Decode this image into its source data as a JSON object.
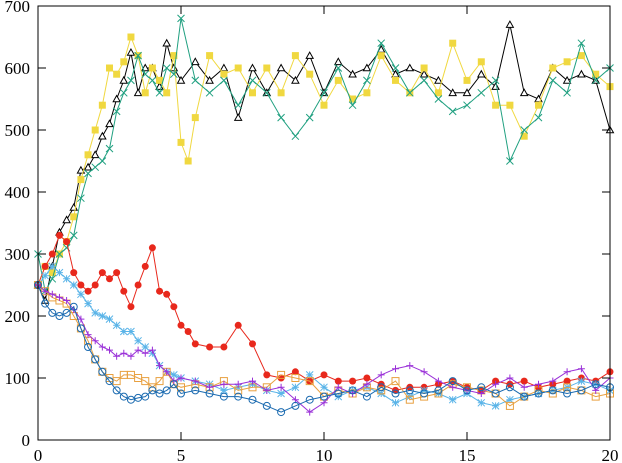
{
  "chart_data": {
    "type": "line",
    "title": "",
    "xlabel": "",
    "ylabel": "",
    "xlim": [
      0,
      20
    ],
    "ylim": [
      0,
      700
    ],
    "xticks": [
      0,
      5,
      10,
      15,
      20
    ],
    "yticks": [
      0,
      100,
      200,
      300,
      400,
      500,
      600,
      700
    ],
    "grid": false,
    "legend": "none",
    "series": [
      {
        "color": "#000000",
        "marker": "triangle-open",
        "x": [
          0,
          0.25,
          0.5,
          0.75,
          1,
          1.25,
          1.5,
          1.75,
          2,
          2.25,
          2.5,
          2.75,
          3,
          3.25,
          3.5,
          3.75,
          4,
          4.25,
          4.5,
          4.75,
          5,
          5.5,
          6,
          6.5,
          7,
          7.5,
          8,
          8.5,
          9,
          9.5,
          10,
          10.5,
          11,
          11.5,
          12,
          12.5,
          13,
          13.5,
          14,
          14.5,
          15,
          15.5,
          16,
          16.5,
          17,
          17.5,
          18,
          18.5,
          19,
          19.5,
          20
        ],
        "y": [
          250,
          225,
          280,
          335,
          355,
          375,
          435,
          440,
          460,
          490,
          510,
          550,
          580,
          625,
          560,
          600,
          600,
          570,
          640,
          600,
          580,
          610,
          580,
          600,
          520,
          600,
          560,
          600,
          580,
          620,
          560,
          610,
          590,
          600,
          630,
          590,
          600,
          590,
          580,
          560,
          560,
          590,
          570,
          670,
          560,
          550,
          600,
          580,
          590,
          580,
          500
        ]
      },
      {
        "color": "#f0d840",
        "marker": "square-filled",
        "x": [
          0,
          0.25,
          0.5,
          0.75,
          1,
          1.25,
          1.5,
          1.75,
          2,
          2.25,
          2.5,
          2.75,
          3,
          3.25,
          3.5,
          3.75,
          4,
          4.25,
          4.5,
          4.75,
          5,
          5.25,
          5.5,
          6,
          6.5,
          7,
          7.5,
          8,
          8.5,
          9,
          9.5,
          10,
          10.5,
          11,
          11.5,
          12,
          12.5,
          13,
          13.5,
          14,
          14.5,
          15,
          15.5,
          16,
          16.5,
          17,
          17.5,
          18,
          18.5,
          19,
          19.5,
          20
        ],
        "y": [
          250,
          280,
          270,
          300,
          320,
          360,
          420,
          460,
          500,
          540,
          600,
          590,
          610,
          650,
          620,
          560,
          600,
          580,
          560,
          620,
          480,
          450,
          520,
          620,
          590,
          600,
          560,
          600,
          560,
          620,
          590,
          540,
          580,
          550,
          560,
          620,
          580,
          560,
          600,
          560,
          640,
          580,
          610,
          540,
          540,
          490,
          540,
          600,
          610,
          620,
          590,
          570
        ]
      },
      {
        "color": "#20a080",
        "marker": "x",
        "x": [
          0,
          0.25,
          0.5,
          0.75,
          1,
          1.25,
          1.5,
          1.75,
          2,
          2.25,
          2.5,
          2.75,
          3,
          3.25,
          3.5,
          3.75,
          4,
          4.25,
          4.5,
          4.75,
          5,
          5.5,
          6,
          6.5,
          7,
          7.5,
          8,
          8.5,
          9,
          9.5,
          10,
          10.5,
          11,
          11.5,
          12,
          12.5,
          13,
          13.5,
          14,
          14.5,
          15,
          15.5,
          16,
          16.5,
          17,
          17.5,
          18,
          18.5,
          19,
          19.5,
          20
        ],
        "y": [
          300,
          240,
          260,
          300,
          310,
          330,
          390,
          430,
          440,
          450,
          470,
          530,
          560,
          580,
          620,
          590,
          580,
          560,
          600,
          590,
          680,
          580,
          560,
          580,
          540,
          580,
          560,
          520,
          490,
          520,
          560,
          600,
          540,
          580,
          640,
          600,
          560,
          580,
          550,
          530,
          540,
          560,
          580,
          450,
          500,
          520,
          580,
          560,
          640,
          580,
          600
        ]
      },
      {
        "color": "#e8281c",
        "marker": "circle-filled",
        "x": [
          0,
          0.25,
          0.5,
          0.75,
          1,
          1.25,
          1.5,
          1.75,
          2,
          2.25,
          2.5,
          2.75,
          3,
          3.25,
          3.5,
          3.75,
          4,
          4.25,
          4.5,
          4.75,
          5,
          5.25,
          5.5,
          6,
          6.5,
          7,
          7.5,
          8,
          8.5,
          9,
          9.5,
          10,
          10.5,
          11,
          11.5,
          12,
          12.5,
          13,
          13.5,
          14,
          14.5,
          15,
          15.5,
          16,
          16.5,
          17,
          17.5,
          18,
          18.5,
          19,
          19.5,
          20
        ],
        "y": [
          250,
          280,
          300,
          330,
          320,
          270,
          250,
          240,
          250,
          270,
          260,
          270,
          240,
          215,
          250,
          280,
          310,
          240,
          235,
          215,
          185,
          175,
          155,
          150,
          150,
          185,
          155,
          105,
          100,
          110,
          95,
          105,
          95,
          95,
          100,
          90,
          80,
          85,
          85,
          90,
          95,
          85,
          80,
          95,
          90,
          95,
          85,
          90,
          95,
          100,
          95,
          110
        ]
      },
      {
        "color": "#5ab4e8",
        "marker": "asterisk",
        "x": [
          0,
          0.25,
          0.5,
          0.75,
          1,
          1.25,
          1.5,
          1.75,
          2,
          2.25,
          2.5,
          2.75,
          3,
          3.25,
          3.5,
          3.75,
          4,
          4.25,
          4.5,
          4.75,
          5,
          5.5,
          6,
          6.5,
          7,
          7.5,
          8,
          8.5,
          9,
          9.5,
          10,
          10.5,
          11,
          11.5,
          12,
          12.5,
          13,
          13.5,
          14,
          14.5,
          15,
          15.5,
          16,
          16.5,
          17,
          17.5,
          18,
          18.5,
          19,
          19.5,
          20
        ],
        "y": [
          250,
          265,
          280,
          270,
          260,
          250,
          235,
          220,
          205,
          200,
          195,
          185,
          175,
          175,
          160,
          150,
          140,
          120,
          110,
          105,
          100,
          95,
          90,
          80,
          85,
          90,
          80,
          75,
          85,
          105,
          85,
          70,
          80,
          85,
          75,
          60,
          70,
          80,
          75,
          65,
          75,
          60,
          55,
          65,
          70,
          75,
          80,
          85,
          95,
          90,
          80
        ]
      },
      {
        "color": "#e8a040",
        "marker": "square-open",
        "x": [
          0,
          0.25,
          0.5,
          0.75,
          1,
          1.25,
          1.5,
          1.75,
          2,
          2.25,
          2.5,
          2.75,
          3,
          3.25,
          3.5,
          3.75,
          4,
          4.25,
          4.5,
          4.75,
          5,
          5.5,
          6,
          6.5,
          7,
          7.5,
          8,
          8.5,
          9,
          9.5,
          10,
          10.5,
          11,
          11.5,
          12,
          12.5,
          13,
          13.5,
          14,
          14.5,
          15,
          15.5,
          16,
          16.5,
          17,
          17.5,
          18,
          18.5,
          19,
          19.5,
          20
        ],
        "y": [
          250,
          240,
          230,
          225,
          220,
          200,
          180,
          160,
          130,
          110,
          100,
          95,
          105,
          105,
          100,
          95,
          85,
          95,
          110,
          90,
          85,
          90,
          85,
          95,
          80,
          85,
          85,
          105,
          100,
          95,
          70,
          80,
          75,
          85,
          80,
          95,
          65,
          70,
          75,
          90,
          85,
          80,
          75,
          55,
          70,
          80,
          75,
          85,
          80,
          70,
          75
        ]
      },
      {
        "color": "#9a30d8",
        "marker": "plus",
        "x": [
          0,
          0.25,
          0.5,
          0.75,
          1,
          1.25,
          1.5,
          1.75,
          2,
          2.25,
          2.5,
          2.75,
          3,
          3.25,
          3.5,
          3.75,
          4,
          4.25,
          4.5,
          4.75,
          5,
          5.5,
          6,
          6.5,
          7,
          7.5,
          8,
          8.5,
          9,
          9.5,
          10,
          10.5,
          11,
          11.5,
          12,
          12.5,
          13,
          13.5,
          14,
          14.5,
          15,
          15.5,
          16,
          16.5,
          17,
          17.5,
          18,
          18.5,
          19,
          19.5,
          20
        ],
        "y": [
          250,
          240,
          235,
          230,
          225,
          210,
          195,
          170,
          160,
          150,
          145,
          135,
          140,
          135,
          145,
          140,
          145,
          120,
          110,
          95,
          100,
          95,
          85,
          90,
          90,
          95,
          80,
          85,
          65,
          45,
          60,
          85,
          75,
          90,
          105,
          115,
          120,
          110,
          95,
          85,
          80,
          75,
          90,
          100,
          85,
          90,
          95,
          110,
          115,
          80,
          100
        ]
      },
      {
        "color": "#1a6ab0",
        "marker": "circle-open",
        "x": [
          0,
          0.25,
          0.5,
          0.75,
          1,
          1.25,
          1.5,
          1.75,
          2,
          2.25,
          2.5,
          2.75,
          3,
          3.25,
          3.5,
          3.75,
          4,
          4.25,
          4.5,
          4.75,
          5,
          5.5,
          6,
          6.5,
          7,
          7.5,
          8,
          8.5,
          9,
          9.5,
          10,
          10.5,
          11,
          11.5,
          12,
          12.5,
          13,
          13.5,
          14,
          14.5,
          15,
          15.5,
          16,
          16.5,
          17,
          17.5,
          18,
          18.5,
          19,
          19.5,
          20
        ],
        "y": [
          250,
          220,
          205,
          200,
          205,
          215,
          180,
          150,
          130,
          110,
          95,
          80,
          70,
          65,
          68,
          70,
          80,
          75,
          80,
          90,
          75,
          80,
          75,
          70,
          70,
          65,
          55,
          45,
          55,
          65,
          70,
          75,
          80,
          70,
          85,
          75,
          80,
          75,
          80,
          95,
          80,
          85,
          75,
          85,
          70,
          75,
          80,
          75,
          80,
          90,
          85
        ]
      }
    ]
  }
}
